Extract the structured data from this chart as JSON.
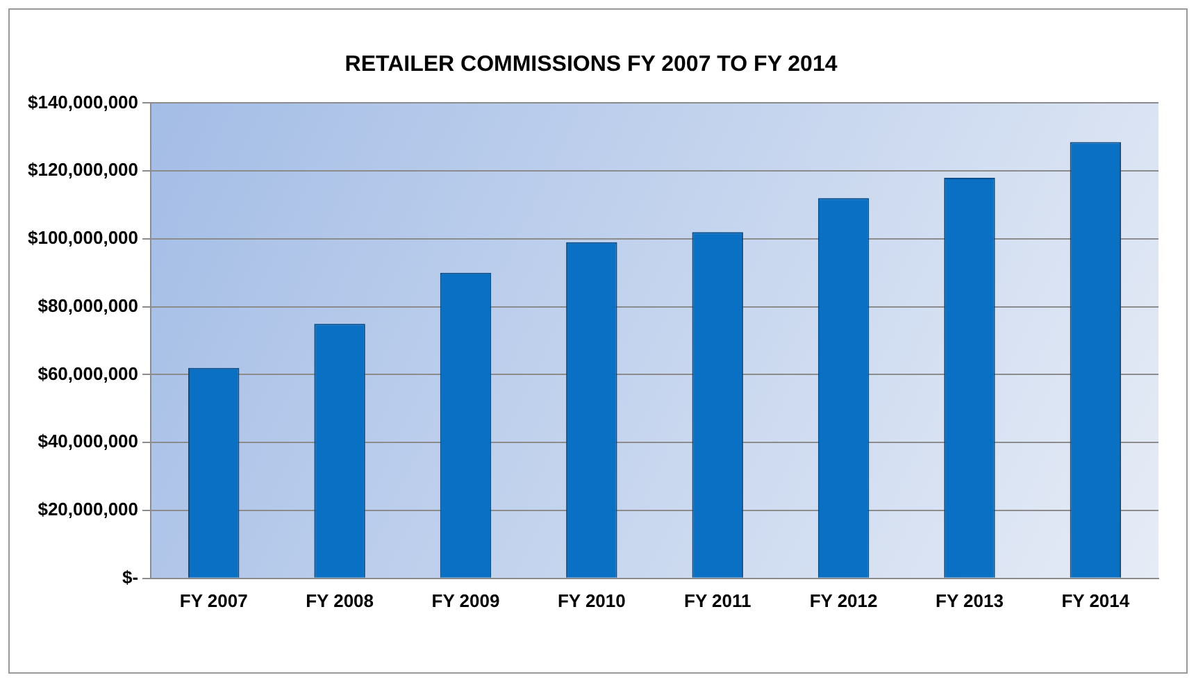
{
  "chart_data": {
    "type": "bar",
    "title": "RETAILER COMMISSIONS FY 2007 TO FY 2014",
    "categories": [
      "FY 2007",
      "FY 2008",
      "FY 2009",
      "FY 2010",
      "FY 2011",
      "FY 2012",
      "FY 2013",
      "FY 2014"
    ],
    "values": [
      62000000,
      75000000,
      90000000,
      99000000,
      102000000,
      112000000,
      118000000,
      128500000
    ],
    "color": "#0a70c4",
    "ylim": [
      0,
      140000000
    ],
    "yticks": [
      {
        "value": 0,
        "label": "$-"
      },
      {
        "value": 20000000,
        "label": "$20,000,000"
      },
      {
        "value": 40000000,
        "label": "$40,000,000"
      },
      {
        "value": 60000000,
        "label": "$60,000,000"
      },
      {
        "value": 80000000,
        "label": "$80,000,000"
      },
      {
        "value": 100000000,
        "label": "$100,000,000"
      },
      {
        "value": 120000000,
        "label": "$120,000,000"
      },
      {
        "value": 140000000,
        "label": "$140,000,000"
      }
    ],
    "grid": "y",
    "legend": false
  }
}
